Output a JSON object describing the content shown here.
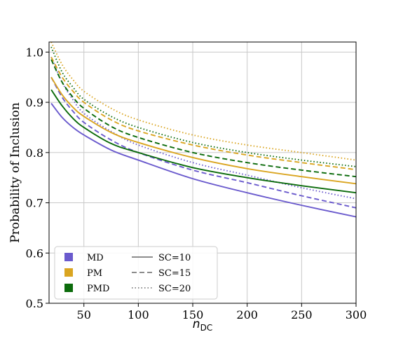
{
  "chart_data": {
    "type": "line",
    "xlabel": "n",
    "xlabel_sub": "DC",
    "ylabel": "Probability of Inclusion",
    "xlim": [
      18,
      300
    ],
    "ylim": [
      0.5,
      1.02
    ],
    "xticks": [
      50,
      100,
      150,
      200,
      250,
      300
    ],
    "yticks": [
      0.5,
      0.6,
      0.7,
      0.8,
      0.9,
      1.0
    ],
    "xtick_labels": [
      "50",
      "100",
      "150",
      "200",
      "250",
      "300"
    ],
    "ytick_labels": [
      "0.5",
      "0.6",
      "0.7",
      "0.8",
      "0.9",
      "1.0"
    ],
    "grid": true,
    "legend_position": "lower-left",
    "x": [
      20,
      30,
      40,
      50,
      75,
      100,
      150,
      200,
      250,
      300
    ],
    "series": [
      {
        "name": "MD",
        "sc": "SC=10",
        "color": "#6a5acd",
        "dash": "solid",
        "values": [
          0.898,
          0.87,
          0.85,
          0.835,
          0.805,
          0.785,
          0.748,
          0.72,
          0.695,
          0.672
        ]
      },
      {
        "name": "MD",
        "sc": "SC=15",
        "color": "#6a5acd",
        "dash": "dashed",
        "values": [
          0.95,
          0.91,
          0.882,
          0.86,
          0.825,
          0.8,
          0.765,
          0.74,
          0.714,
          0.69
        ]
      },
      {
        "name": "MD",
        "sc": "SC=20",
        "color": "#6a5acd",
        "dash": "dotted",
        "values": [
          0.99,
          0.94,
          0.905,
          0.878,
          0.842,
          0.815,
          0.78,
          0.755,
          0.73,
          0.708
        ]
      },
      {
        "name": "PM",
        "sc": "SC=10",
        "color": "#daa520",
        "dash": "solid",
        "values": [
          0.95,
          0.915,
          0.89,
          0.872,
          0.84,
          0.82,
          0.79,
          0.768,
          0.752,
          0.738
        ]
      },
      {
        "name": "PM",
        "sc": "SC=15",
        "color": "#daa520",
        "dash": "dashed",
        "values": [
          0.99,
          0.95,
          0.922,
          0.9,
          0.865,
          0.843,
          0.815,
          0.795,
          0.78,
          0.766
        ]
      },
      {
        "name": "PM",
        "sc": "SC=20",
        "color": "#daa520",
        "dash": "dotted",
        "values": [
          1.02,
          0.975,
          0.945,
          0.922,
          0.888,
          0.865,
          0.835,
          0.815,
          0.8,
          0.785
        ]
      },
      {
        "name": "PMD",
        "sc": "SC=10",
        "color": "#0b6b0b",
        "dash": "solid",
        "values": [
          0.925,
          0.893,
          0.868,
          0.85,
          0.818,
          0.8,
          0.77,
          0.75,
          0.734,
          0.72
        ]
      },
      {
        "name": "PMD",
        "sc": "SC=15",
        "color": "#0b6b0b",
        "dash": "dashed",
        "values": [
          0.985,
          0.94,
          0.91,
          0.888,
          0.852,
          0.83,
          0.8,
          0.78,
          0.765,
          0.752
        ]
      },
      {
        "name": "PMD",
        "sc": "SC=20",
        "color": "#0b6b0b",
        "dash": "dotted",
        "values": [
          1.01,
          0.96,
          0.93,
          0.906,
          0.872,
          0.85,
          0.82,
          0.8,
          0.785,
          0.772
        ]
      }
    ],
    "legend": {
      "colors": [
        {
          "label": "MD",
          "color": "#6a5acd"
        },
        {
          "label": "PM",
          "color": "#daa520"
        },
        {
          "label": "PMD",
          "color": "#0b6b0b"
        }
      ],
      "styles": [
        {
          "label": "SC=10",
          "dash": "solid"
        },
        {
          "label": "SC=15",
          "dash": "dashed"
        },
        {
          "label": "SC=20",
          "dash": "dotted"
        }
      ]
    }
  }
}
